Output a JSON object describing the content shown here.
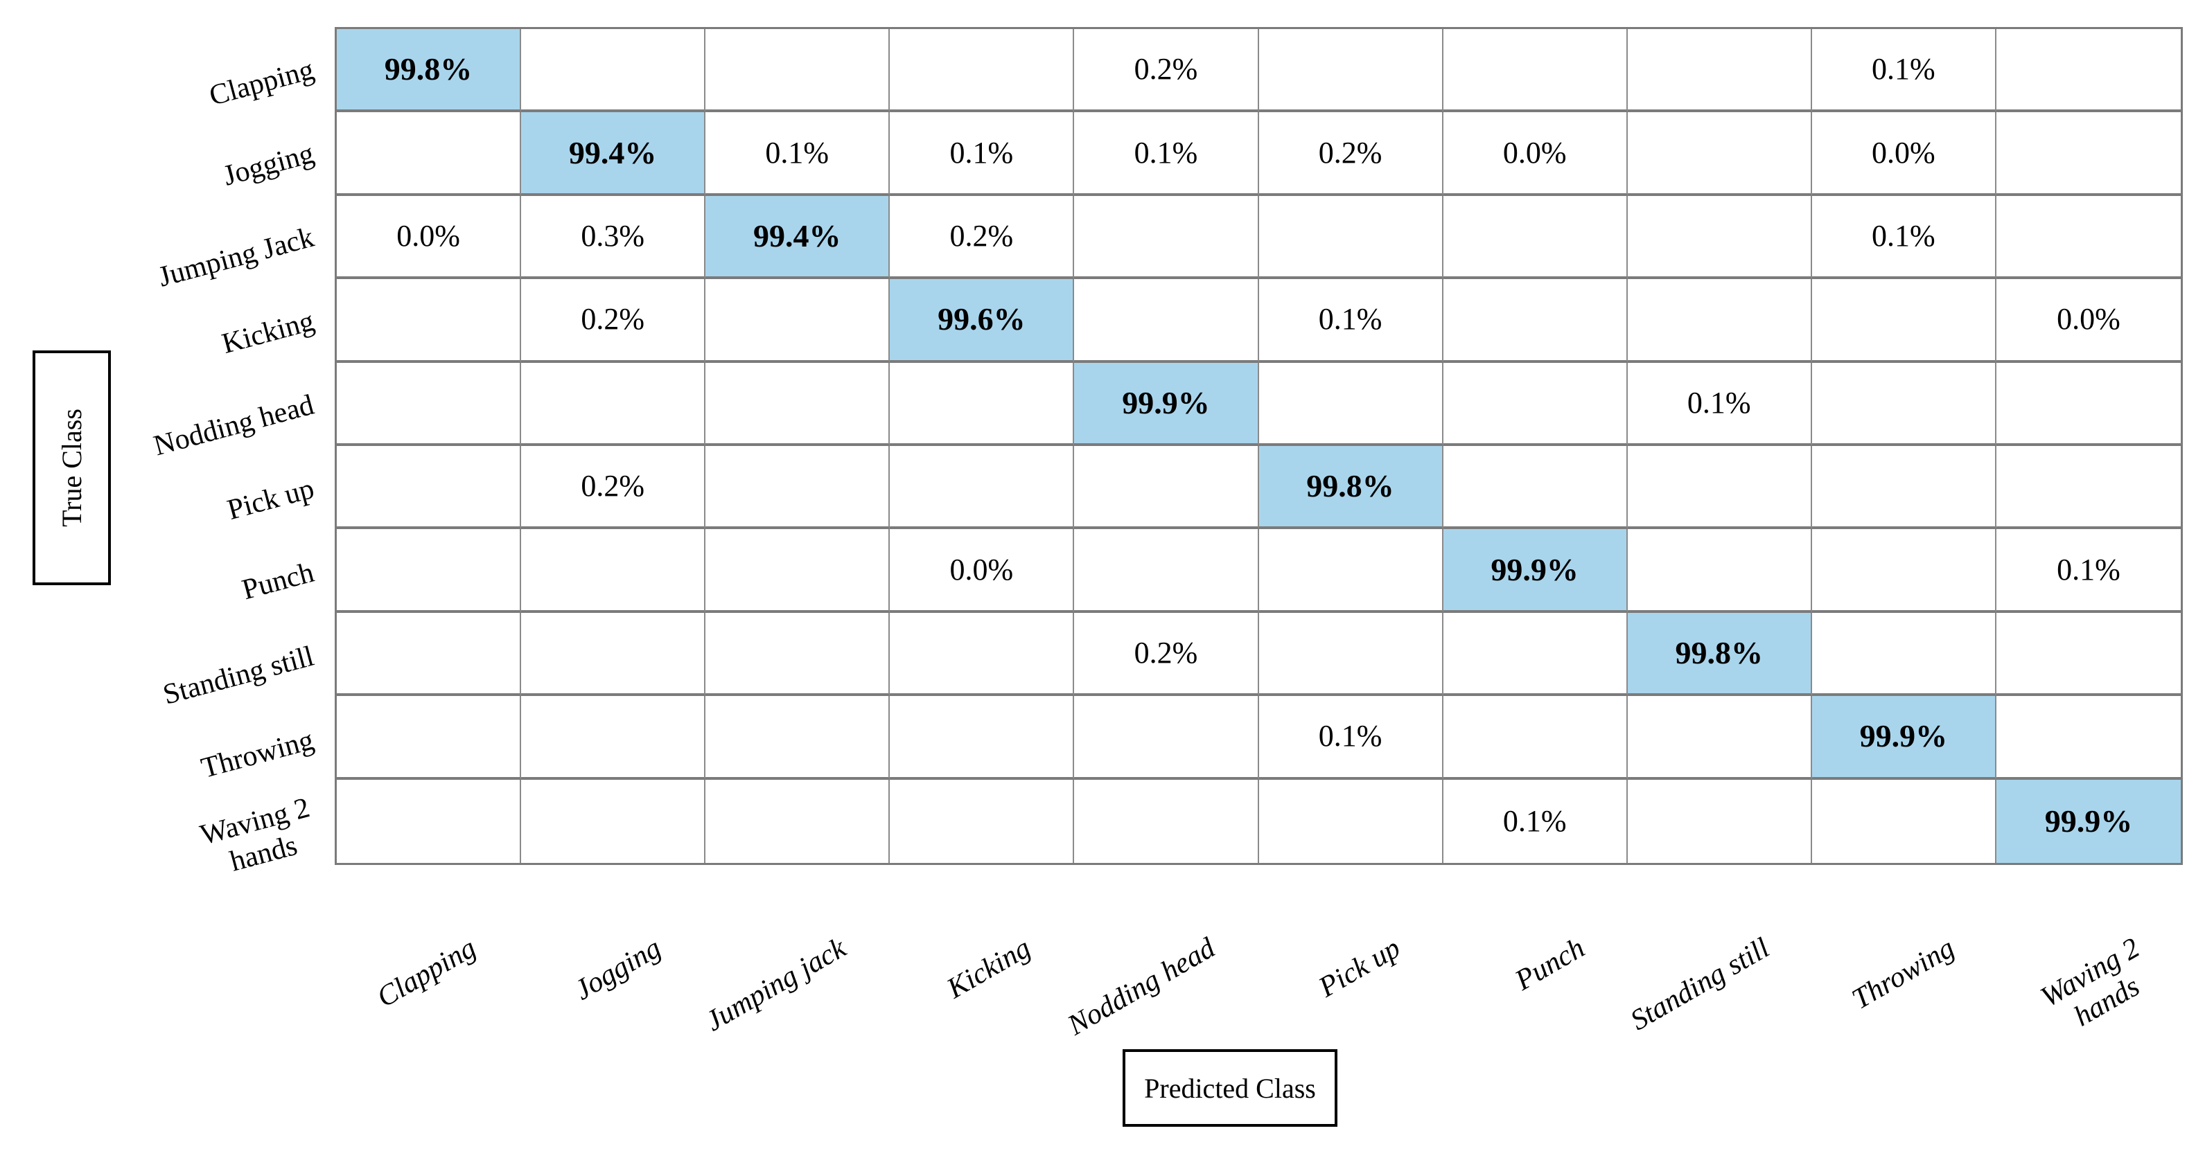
{
  "chart_data": {
    "type": "heatmap",
    "xlabel": "Predicted Class",
    "ylabel": "True Class",
    "row_labels": [
      "Clapping",
      "Jogging",
      "Jumping Jack",
      "Kicking",
      "Nodding head",
      "Pick up",
      "Punch",
      "Standing still",
      "Throwing",
      "Waving 2\nhands"
    ],
    "col_labels": [
      "Clapping",
      "Jogging",
      "Jumping jack",
      "Kicking",
      "Nodding head",
      "Pick up",
      "Punch",
      "Standing still",
      "Throwing",
      "Waving 2\nhands"
    ],
    "matrix": [
      [
        "99.8%",
        "",
        "",
        "",
        "0.2%",
        "",
        "",
        "",
        "0.1%",
        ""
      ],
      [
        "",
        "99.4%",
        "0.1%",
        "0.1%",
        "0.1%",
        "0.2%",
        "0.0%",
        "",
        "0.0%",
        ""
      ],
      [
        "0.0%",
        "0.3%",
        "99.4%",
        "0.2%",
        "",
        "",
        "",
        "",
        "0.1%",
        ""
      ],
      [
        "",
        "0.2%",
        "",
        "99.6%",
        "",
        "0.1%",
        "",
        "",
        "",
        "0.0%"
      ],
      [
        "",
        "",
        "",
        "",
        "99.9%",
        "",
        "",
        "0.1%",
        "",
        ""
      ],
      [
        "",
        "0.2%",
        "",
        "",
        "",
        "99.8%",
        "",
        "",
        "",
        ""
      ],
      [
        "",
        "",
        "",
        "0.0%",
        "",
        "",
        "99.9%",
        "",
        "",
        "0.1%"
      ],
      [
        "",
        "",
        "",
        "",
        "0.2%",
        "",
        "",
        "99.8%",
        "",
        ""
      ],
      [
        "",
        "",
        "",
        "",
        "",
        "0.1%",
        "",
        "",
        "99.9%",
        ""
      ],
      [
        "",
        "",
        "",
        "",
        "",
        "",
        "0.1%",
        "",
        "",
        "99.9%"
      ]
    ],
    "diagonal_color": "#a9d5ec",
    "grid_line_color_horizontal": "#7b7b7b",
    "grid_line_color_vertical": "#8a8a8a",
    "legend": null,
    "grid": true
  }
}
